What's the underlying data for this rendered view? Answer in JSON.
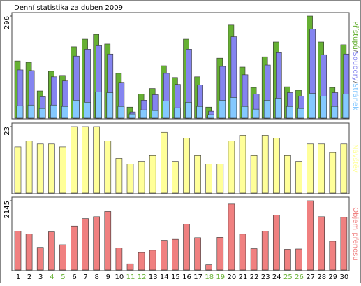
{
  "chart_data": [
    {
      "type": "grouped-bar",
      "title": "Denní statistika za duben 2009",
      "ylim": [
        0,
        296
      ],
      "yticks": [
        296
      ],
      "legend_separator": "/",
      "series": [
        {
          "name": "Přístupů",
          "color": "#66b033",
          "values": [
            166,
            162,
            79,
            136,
            124,
            207,
            229,
            243,
            215,
            130,
            32,
            70,
            86,
            152,
            118,
            229,
            120,
            32,
            174,
            270,
            148,
            89,
            178,
            221,
            91,
            81,
            296,
            221,
            89,
            213
          ]
        },
        {
          "name": "Soubory",
          "color": "#8484f0",
          "values": [
            140,
            138,
            62,
            120,
            108,
            180,
            200,
            210,
            186,
            104,
            18,
            52,
            68,
            130,
            98,
            200,
            96,
            20,
            150,
            236,
            126,
            70,
            154,
            190,
            74,
            64,
            258,
            184,
            74,
            186
          ]
        },
        {
          "name": "Stránek",
          "color": "#84c8ff",
          "values": [
            36,
            38,
            28,
            38,
            34,
            52,
            46,
            76,
            74,
            34,
            12,
            24,
            22,
            50,
            30,
            46,
            34,
            10,
            52,
            60,
            34,
            26,
            52,
            58,
            34,
            28,
            72,
            64,
            34,
            70
          ]
        }
      ]
    },
    {
      "type": "bar",
      "ylim": [
        0,
        23
      ],
      "yticks": [
        23
      ],
      "series": [
        {
          "name": "Návštěv",
          "color": "#ffff99",
          "values": [
            16,
            18,
            17,
            17,
            16,
            23,
            23,
            23,
            18,
            12,
            10,
            11,
            13,
            21,
            11,
            19,
            13,
            10,
            10,
            18,
            20,
            13,
            20,
            19,
            13,
            11,
            17,
            17,
            14,
            17
          ]
        }
      ]
    },
    {
      "type": "bar",
      "ylim": [
        0,
        2145
      ],
      "yticks": [
        2145
      ],
      "categories": [
        "1",
        "2",
        "3",
        "4",
        "5",
        "6",
        "7",
        "8",
        "9",
        "10",
        "11",
        "12",
        "13",
        "14",
        "15",
        "16",
        "17",
        "18",
        "19",
        "20",
        "21",
        "22",
        "23",
        "24",
        "25",
        "26",
        "27",
        "28",
        "29",
        "30"
      ],
      "category_colors": [
        "#000",
        "#000",
        "#000",
        "#66b033",
        "#66b033",
        "#000",
        "#000",
        "#000",
        "#000",
        "#000",
        "#66b033",
        "#66b033",
        "#000",
        "#000",
        "#000",
        "#000",
        "#000",
        "#66b033",
        "#66b033",
        "#000",
        "#000",
        "#000",
        "#000",
        "#000",
        "#66b033",
        "#66b033",
        "#000",
        "#000",
        "#000",
        "#000"
      ],
      "series": [
        {
          "name": "Objem přenosu",
          "color": "#f08080",
          "values": [
            1200,
            1120,
            700,
            1180,
            780,
            1360,
            1590,
            1650,
            1810,
            680,
            190,
            540,
            610,
            920,
            950,
            1420,
            1000,
            160,
            1010,
            2040,
            1110,
            660,
            1200,
            1700,
            640,
            650,
            2145,
            1650,
            890,
            1630
          ]
        }
      ]
    }
  ]
}
